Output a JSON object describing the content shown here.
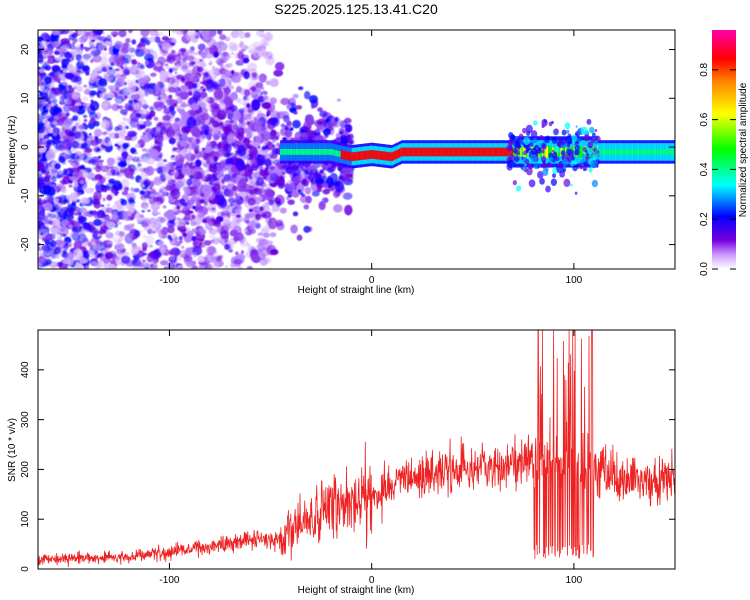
{
  "title": "S225.2025.125.13.41.C20",
  "chart_data": [
    {
      "type": "heatmap",
      "xlabel": "Height of straight line (km)",
      "ylabel": "Frequency (Hz)",
      "xlim": [
        -165,
        150
      ],
      "ylim": [
        -25,
        24
      ],
      "xticks": [
        -100,
        0,
        100
      ],
      "yticks": [
        -20,
        -10,
        0,
        10,
        20
      ],
      "colorbar": {
        "label": "Normalized spectral amplitude",
        "ticks": [
          0.0,
          0.2,
          0.4,
          0.6,
          0.8
        ],
        "range": [
          0,
          0.96
        ],
        "colormap": [
          "#ffffff",
          "#6600cc",
          "#0000ff",
          "#00ffff",
          "#00ff00",
          "#ffff00",
          "#ff8800",
          "#ff0000",
          "#ff00aa"
        ]
      },
      "band": {
        "center_freq_hz": [
          [
            -20,
            -1
          ],
          [
            -15,
            -1.5
          ],
          [
            -10,
            -2
          ],
          [
            0,
            -1.5
          ],
          [
            10,
            -2
          ],
          [
            15,
            -1
          ],
          [
            70,
            -1
          ],
          [
            80,
            -1
          ],
          [
            100,
            -1
          ],
          [
            150,
            -1
          ]
        ],
        "noise_region_km": [
          -165,
          -60
        ]
      }
    },
    {
      "type": "line",
      "xlabel": "Height of straight line (km)",
      "ylabel": "SNR (10 * v/v)",
      "xlim": [
        -165,
        150
      ],
      "ylim": [
        0,
        480
      ],
      "xticks": [
        -100,
        0,
        100
      ],
      "yticks": [
        0,
        100,
        200,
        300,
        400
      ],
      "color": "#ee2222",
      "envelope": {
        "x": [
          -165,
          -120,
          -100,
          -80,
          -60,
          -45,
          -40,
          -30,
          -20,
          -10,
          0,
          20,
          40,
          60,
          70,
          80,
          90,
          100,
          105,
          110,
          120,
          130,
          150
        ],
        "y": [
          20,
          25,
          35,
          45,
          60,
          60,
          80,
          100,
          120,
          140,
          150,
          180,
          200,
          200,
          210,
          220,
          220,
          210,
          200,
          200,
          190,
          180,
          180
        ]
      },
      "spike_region_km": [
        80,
        110
      ],
      "peak": {
        "x": 109,
        "y": 480
      }
    }
  ]
}
